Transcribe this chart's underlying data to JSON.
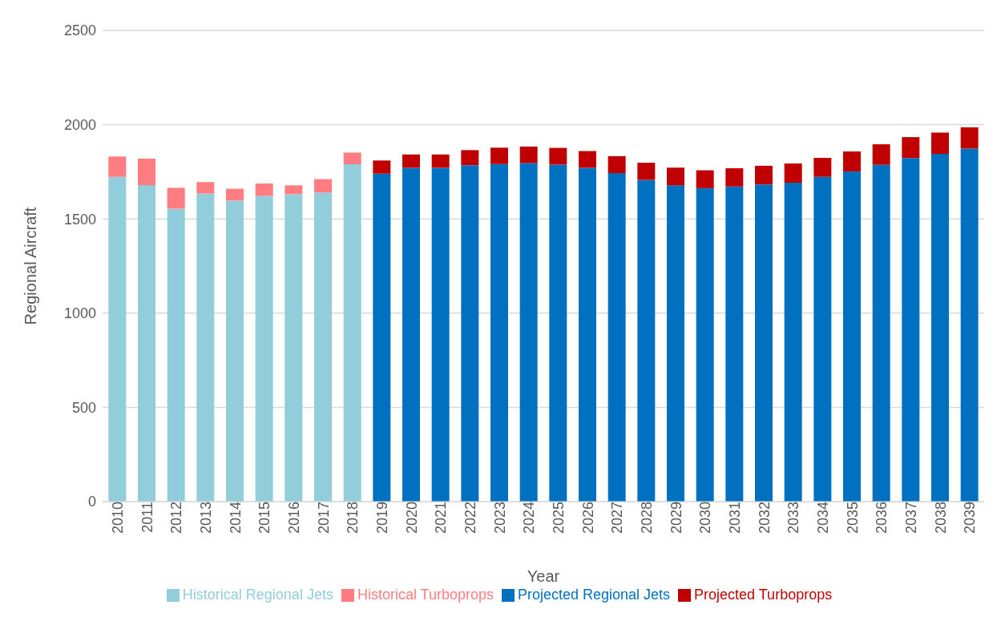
{
  "chart_data": {
    "type": "bar",
    "stacked": true,
    "xlabel": "Year",
    "ylabel": "Regional Aircraft",
    "categories": [
      "2010",
      "2011",
      "2012",
      "2013",
      "2014",
      "2015",
      "2016",
      "2017",
      "2018",
      "2019",
      "2020",
      "2021",
      "2022",
      "2023",
      "2024",
      "2025",
      "2026",
      "2027",
      "2028",
      "2029",
      "2030",
      "2031",
      "2032",
      "2033",
      "2034",
      "2035",
      "2036",
      "2037",
      "2038",
      "2039"
    ],
    "series": [
      {
        "name": "Historical Regional Jets",
        "color": "#92cddc",
        "values": [
          1723,
          1679,
          1554,
          1635,
          1597,
          1622,
          1631,
          1640,
          1790,
          null,
          null,
          null,
          null,
          null,
          null,
          null,
          null,
          null,
          null,
          null,
          null,
          null,
          null,
          null,
          null,
          null,
          null,
          null,
          null,
          null
        ]
      },
      {
        "name": "Historical Turboprops",
        "color": "#ff7c80",
        "values": [
          108,
          141,
          111,
          60,
          63,
          66,
          47,
          71,
          62,
          null,
          null,
          null,
          null,
          null,
          null,
          null,
          null,
          null,
          null,
          null,
          null,
          null,
          null,
          null,
          null,
          null,
          null,
          null,
          null,
          null
        ]
      },
      {
        "name": "Projected Regional Jets",
        "color": "#0070c0",
        "values": [
          null,
          null,
          null,
          null,
          null,
          null,
          null,
          null,
          null,
          1740,
          1771,
          1771,
          1785,
          1791,
          1796,
          1788,
          1771,
          1743,
          1707,
          1678,
          1663,
          1672,
          1683,
          1692,
          1723,
          1752,
          1787,
          1823,
          1845,
          1873
        ]
      },
      {
        "name": "Projected Turboprops",
        "color": "#c00000",
        "values": [
          null,
          null,
          null,
          null,
          null,
          null,
          null,
          null,
          null,
          70,
          71,
          71,
          80,
          87,
          88,
          89,
          89,
          90,
          91,
          94,
          95,
          97,
          99,
          102,
          101,
          106,
          109,
          111,
          113,
          113
        ]
      }
    ],
    "ylim": [
      0,
      2500
    ],
    "yticks": [
      0,
      500,
      1000,
      1500,
      2000,
      2500
    ],
    "grid": "y",
    "legend": "bottom"
  }
}
